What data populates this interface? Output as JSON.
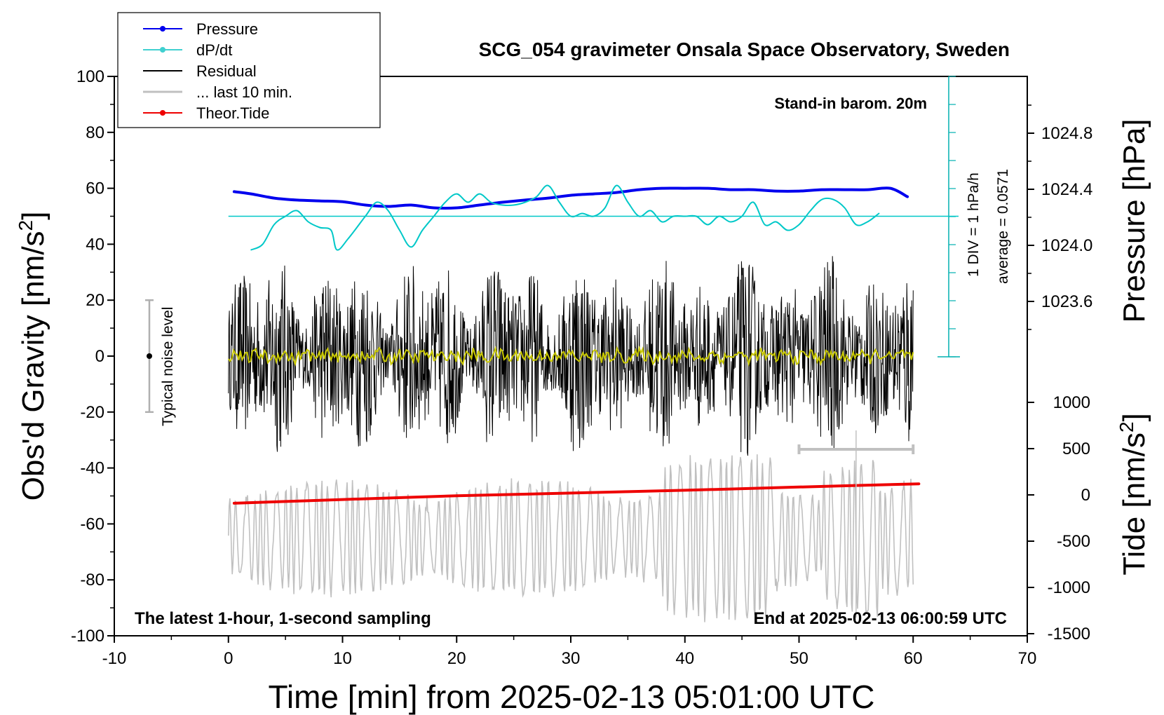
{
  "chart_data": {
    "type": "line",
    "title": "SCG_054 gravimeter Onsala Space Observatory, Sweden",
    "xlabel": "Time [min] from 2025-02-13 05:01:00 UTC",
    "ylabel_main": "Obs'd Gravity [nm/s",
    "ylabel_sup": "2",
    "ylabel_close": "]",
    "ylabel_pressure": "Pressure [hPa]",
    "ylabel_tide": "Tide [nm/s",
    "ylabel_tide_sup": "2",
    "ylabel_tide_close": "]",
    "xlim": [
      -10,
      70
    ],
    "ylim": [
      -100,
      100
    ],
    "x_ticks": [
      "-10",
      "0",
      "10",
      "20",
      "30",
      "40",
      "50",
      "60",
      "70"
    ],
    "y_ticks": [
      "100",
      "80",
      "60",
      "40",
      "20",
      "0",
      "-20",
      "-40",
      "-60",
      "-80",
      "-100"
    ],
    "pressure_ticks": [
      "1024.8",
      "1024.4",
      "1024.0",
      "1023.6"
    ],
    "tide_ticks": [
      "1000",
      "500",
      "0",
      "-500",
      "-1000",
      "-1500"
    ],
    "legend": [
      {
        "label": "Pressure",
        "color": "#0000ee",
        "marker": true
      },
      {
        "label": "dP/dt",
        "color": "#00c8c8",
        "marker": true
      },
      {
        "label": "Residual",
        "color": "#000000",
        "marker": false
      },
      {
        "label": "... last 10 min.",
        "color": "#c0c0c0",
        "marker": false
      },
      {
        "label": "Theor.Tide",
        "color": "#ee0000",
        "marker": true
      }
    ],
    "annotations": {
      "barometer": "Stand-in barom. 20m",
      "div_label": "1 DIV = 1 hPa/h",
      "average_label": "average = 0.0571",
      "noise_label": "Typical noise level",
      "bottom_left": "The latest 1-hour, 1-second sampling",
      "bottom_right": "End at 2025-02-13 06:00:59 UTC"
    },
    "series": [
      {
        "name": "Pressure",
        "color": "#0000ee",
        "axis": "left",
        "x": [
          0.5,
          2,
          4,
          6,
          8,
          10,
          12,
          14,
          16,
          18,
          20,
          22,
          24,
          26,
          28,
          30,
          32,
          34,
          36,
          38,
          40,
          42,
          44,
          46,
          48,
          50,
          52,
          54,
          56,
          58,
          59.5
        ],
        "y": [
          58.8,
          58,
          56.5,
          55.8,
          55.5,
          55.2,
          54,
          53.5,
          54,
          53,
          53,
          54,
          55,
          55.8,
          56.5,
          57.5,
          58,
          58.5,
          59.5,
          60,
          60,
          60,
          59.5,
          59.5,
          59,
          59,
          59.5,
          59.5,
          59.5,
          60,
          57
        ]
      },
      {
        "name": "dP/dt",
        "color": "#00c8c8",
        "axis": "left",
        "x": [
          2,
          3,
          4,
          5,
          6,
          7,
          8,
          9,
          9.5,
          10.5,
          12,
          13,
          14,
          15,
          16,
          17,
          18,
          19,
          20,
          21,
          22,
          23,
          24,
          25,
          26,
          27,
          28,
          29,
          30,
          31,
          32,
          33,
          34,
          35,
          36,
          37,
          38,
          39,
          40,
          41,
          42,
          43,
          44,
          45,
          46,
          47,
          48,
          49,
          50,
          51,
          52,
          53,
          54,
          55,
          56,
          57
        ],
        "y": [
          38,
          40,
          47,
          50,
          52,
          48,
          46,
          45,
          38,
          42,
          50,
          55,
          52,
          45,
          39,
          45,
          50,
          55,
          58,
          55,
          58,
          55,
          54,
          54,
          55,
          57,
          61,
          55,
          50,
          51,
          50,
          53,
          61,
          55,
          50,
          52,
          48,
          50,
          50,
          50,
          47,
          50,
          48,
          50,
          55,
          47,
          48,
          45,
          47,
          52,
          56,
          56,
          53,
          47,
          48,
          51
        ]
      },
      {
        "name": "Theor.Tide",
        "color": "#ee0000",
        "axis": "tide",
        "x": [
          0.5,
          10,
          20,
          30,
          40,
          50,
          60.5
        ],
        "y": [
          -90,
          -50,
          -10,
          20,
          50,
          85,
          120
        ]
      }
    ],
    "residual": {
      "color": "#000000",
      "x_range": [
        0,
        60
      ],
      "amplitude": 30
    },
    "residual_mean": {
      "color": "#c8c800"
    },
    "last10": {
      "color": "#c0c0c0",
      "center": -65,
      "amplitude": 18
    },
    "dpdt_baseline": 50
  }
}
